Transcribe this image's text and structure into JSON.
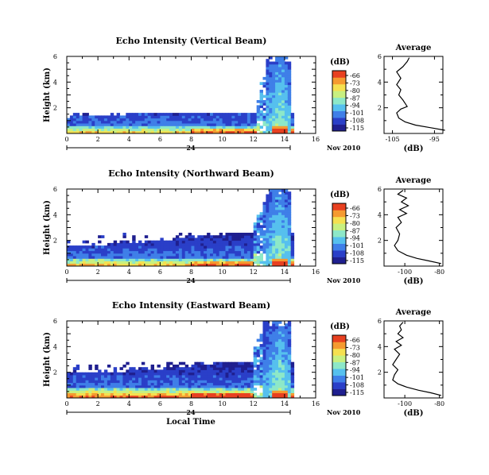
{
  "chart_data": [
    {
      "type": "heatmap",
      "title": "Echo Intensity (Vertical Beam)",
      "ylabel": "Height (km)",
      "x_ticks": [
        "0",
        "2",
        "4",
        "6",
        "8",
        "10",
        "12",
        "14",
        "16"
      ],
      "y_ticks": [
        "2",
        "4",
        "6"
      ],
      "xlim": [
        0,
        16
      ],
      "ylim": [
        0,
        6
      ],
      "date_label": "24",
      "month_label": "Nov 2010",
      "colorbar": {
        "unit": "(dB)",
        "levels": [
          "-66",
          "-73",
          "-80",
          "-87",
          "-94",
          "-101",
          "-108",
          "-115"
        ]
      },
      "colors": [
        "#1f1f8f",
        "#2a3fc8",
        "#3f7fe8",
        "#56c0ee",
        "#8de8c8",
        "#c8f080",
        "#f5e050",
        "#f59a30",
        "#e84020"
      ],
      "field": {
        "base_top": 0.55,
        "clutter_top": 1.5,
        "max_top": 4.6,
        "max_start": 1.2,
        "tower_x": [
          12.7,
          14.2
        ],
        "tower_left": 12.0,
        "tower_peak": 13.6
      },
      "profile": {
        "title": "Average",
        "xlabel": "(dB)",
        "x_ticks": [
          "-105",
          "-95"
        ],
        "xlim": [
          -107,
          -93
        ],
        "y_ticks": [
          "2",
          "4",
          "6"
        ],
        "ylim": [
          0,
          6
        ],
        "points": [
          [
            -92.5,
            0.25
          ],
          [
            -96,
            0.45
          ],
          [
            -99.5,
            0.65
          ],
          [
            -102,
            0.9
          ],
          [
            -103.5,
            1.2
          ],
          [
            -104,
            1.6
          ],
          [
            -103,
            1.9
          ],
          [
            -101.5,
            2.1
          ],
          [
            -102.5,
            2.6
          ],
          [
            -103.5,
            3.0
          ],
          [
            -103,
            3.4
          ],
          [
            -104,
            3.8
          ],
          [
            -103,
            4.3
          ],
          [
            -104,
            4.8
          ],
          [
            -102.5,
            5.2
          ],
          [
            -101.5,
            5.6
          ],
          [
            -101,
            5.9
          ]
        ]
      }
    },
    {
      "type": "heatmap",
      "title": "Echo Intensity (Northward Beam)",
      "ylabel": "Height (km)",
      "x_ticks": [
        "0",
        "2",
        "4",
        "6",
        "8",
        "10",
        "12",
        "14",
        "16"
      ],
      "y_ticks": [
        "2",
        "4",
        "6"
      ],
      "xlim": [
        0,
        16
      ],
      "ylim": [
        0,
        6
      ],
      "date_label": "24",
      "month_label": "Nov 2010",
      "colorbar": {
        "unit": "(dB)",
        "levels": [
          "-66",
          "-73",
          "-80",
          "-87",
          "-94",
          "-101",
          "-108",
          "-115"
        ]
      },
      "colors": [
        "#1f1f8f",
        "#2a3fc8",
        "#3f7fe8",
        "#56c0ee",
        "#8de8c8",
        "#c8f080",
        "#f5e050",
        "#f59a30",
        "#e84020"
      ],
      "field": {
        "base_top": 0.6,
        "clutter_top": 2.6,
        "max_top": 4.9,
        "max_start": 1.5,
        "tower_x": [
          12.6,
          14.2
        ],
        "tower_left": 11.9,
        "tower_peak": 13.6
      },
      "profile": {
        "title": "Average",
        "xlabel": "(dB)",
        "x_ticks": [
          "-100",
          "-80"
        ],
        "xlim": [
          -112,
          -78
        ],
        "y_ticks": [
          "2",
          "4",
          "6"
        ],
        "ylim": [
          0,
          6
        ],
        "points": [
          [
            -79,
            0.2
          ],
          [
            -86,
            0.4
          ],
          [
            -93,
            0.6
          ],
          [
            -99,
            0.85
          ],
          [
            -104,
            1.2
          ],
          [
            -106,
            1.6
          ],
          [
            -104,
            2.0
          ],
          [
            -103,
            2.5
          ],
          [
            -105,
            3.0
          ],
          [
            -102,
            3.4
          ],
          [
            -104,
            3.8
          ],
          [
            -99,
            4.1
          ],
          [
            -103,
            4.4
          ],
          [
            -98,
            4.7
          ],
          [
            -102,
            5.0
          ],
          [
            -99,
            5.3
          ],
          [
            -104,
            5.6
          ],
          [
            -101,
            5.9
          ]
        ]
      }
    },
    {
      "type": "heatmap",
      "title": "Echo Intensity (Eastward Beam)",
      "ylabel": "Height (km)",
      "xlabel": "Local Time",
      "x_ticks": [
        "0",
        "2",
        "4",
        "6",
        "8",
        "10",
        "12",
        "14",
        "16"
      ],
      "y_ticks": [
        "2",
        "4",
        "6"
      ],
      "xlim": [
        0,
        16
      ],
      "ylim": [
        0,
        6
      ],
      "date_label": "24",
      "month_label": "Nov 2010",
      "colorbar": {
        "unit": "(dB)",
        "levels": [
          "-66",
          "-73",
          "-80",
          "-87",
          "-94",
          "-101",
          "-108",
          "-115"
        ]
      },
      "colors": [
        "#1f1f8f",
        "#2a3fc8",
        "#3f7fe8",
        "#56c0ee",
        "#8de8c8",
        "#c8f080",
        "#f5e050",
        "#f59a30",
        "#e84020"
      ],
      "field": {
        "base_top": 0.8,
        "clutter_top": 2.8,
        "max_top": 5.2,
        "max_start": 1.8,
        "tower_x": [
          12.5,
          14.2
        ],
        "tower_left": 11.8,
        "tower_peak": 13.6
      },
      "profile": {
        "title": "Average",
        "xlabel": "(dB)",
        "x_ticks": [
          "-100",
          "-80"
        ],
        "xlim": [
          -112,
          -78
        ],
        "y_ticks": [
          "2",
          "4",
          "6"
        ],
        "ylim": [
          0,
          6
        ],
        "points": [
          [
            -79,
            0.2
          ],
          [
            -85,
            0.4
          ],
          [
            -92,
            0.6
          ],
          [
            -99,
            0.85
          ],
          [
            -104,
            1.1
          ],
          [
            -107,
            1.4
          ],
          [
            -106,
            1.8
          ],
          [
            -104,
            2.2
          ],
          [
            -107,
            2.6
          ],
          [
            -105,
            3.0
          ],
          [
            -103,
            3.4
          ],
          [
            -106,
            3.8
          ],
          [
            -102,
            4.1
          ],
          [
            -105,
            4.4
          ],
          [
            -101,
            4.7
          ],
          [
            -104,
            5.0
          ],
          [
            -102,
            5.3
          ],
          [
            -103,
            5.6
          ],
          [
            -101,
            5.9
          ]
        ]
      }
    }
  ]
}
